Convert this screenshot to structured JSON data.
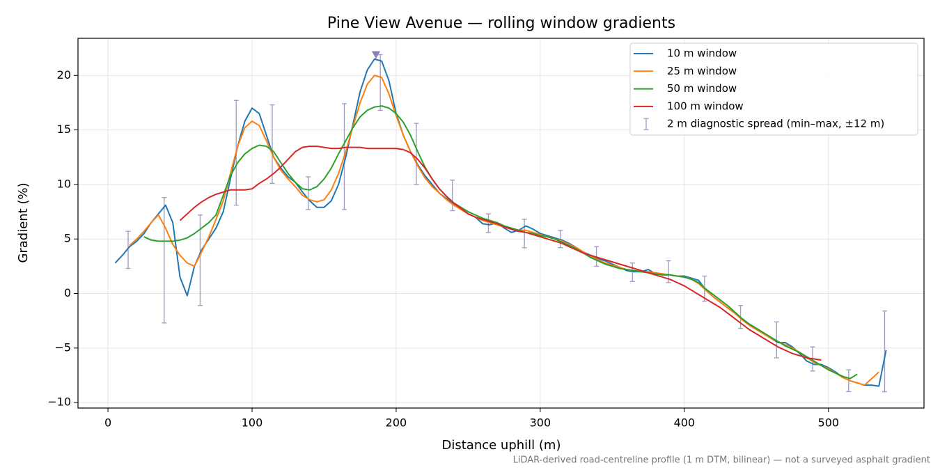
{
  "chart_data": {
    "type": "line",
    "title": "Pine View Avenue — rolling window gradients",
    "xlabel": "Distance uphill (m)",
    "ylabel": "Gradient (%)",
    "footnote": "LiDAR-derived road-centreline profile (1 m DTM, bilinear) — not a surveyed asphalt gradient",
    "xlim": [
      -20.8,
      566.3
    ],
    "ylim": [
      -10.5,
      23.4
    ],
    "xticks": [
      0,
      100,
      200,
      300,
      400,
      500
    ],
    "yticks": [
      {
        "value": -10,
        "label": "−10"
      },
      {
        "value": -5,
        "label": "−5"
      },
      0,
      5,
      10,
      15,
      20
    ],
    "grid": true,
    "legend": "upper right",
    "x": [
      5,
      10,
      15,
      20,
      25,
      30,
      35,
      40,
      45,
      50,
      55,
      60,
      65,
      70,
      75,
      80,
      85,
      90,
      95,
      100,
      105,
      110,
      115,
      120,
      125,
      130,
      135,
      140,
      145,
      150,
      155,
      160,
      165,
      170,
      175,
      180,
      185,
      190,
      195,
      200,
      205,
      210,
      215,
      220,
      225,
      230,
      235,
      240,
      245,
      250,
      255,
      260,
      265,
      270,
      275,
      280,
      285,
      290,
      295,
      300,
      305,
      310,
      315,
      320,
      325,
      330,
      335,
      340,
      345,
      350,
      355,
      360,
      365,
      370,
      375,
      380,
      385,
      390,
      395,
      400,
      405,
      410,
      415,
      420,
      425,
      430,
      435,
      440,
      445,
      450,
      455,
      460,
      465,
      470,
      475,
      480,
      485,
      490,
      495,
      500,
      505,
      510,
      515,
      520,
      525,
      530,
      535,
      540
    ],
    "series": [
      {
        "name": "10 m window",
        "color": "#1f77b4",
        "values": [
          2.8,
          3.5,
          4.3,
          4.8,
          5.5,
          6.5,
          7.3,
          8.1,
          6.5,
          1.5,
          -0.2,
          2.5,
          4.0,
          5.0,
          6.0,
          7.5,
          10.5,
          13.5,
          15.8,
          17.0,
          16.5,
          14.5,
          12.5,
          11.5,
          10.7,
          10.2,
          9.3,
          8.5,
          7.9,
          7.9,
          8.5,
          10.0,
          12.5,
          15.5,
          18.5,
          20.5,
          21.5,
          21.3,
          19.5,
          16.5,
          14.5,
          13.0,
          11.8,
          10.8,
          10.0,
          9.2,
          8.7,
          8.2,
          7.8,
          7.3,
          7.0,
          6.4,
          6.3,
          6.5,
          6.0,
          5.6,
          5.8,
          6.2,
          5.9,
          5.5,
          5.3,
          5.1,
          4.9,
          4.6,
          4.2,
          3.8,
          3.5,
          3.2,
          3.0,
          2.7,
          2.4,
          2.1,
          2.0,
          2.0,
          2.2,
          1.8,
          1.8,
          1.7,
          1.6,
          1.6,
          1.4,
          1.2,
          0.3,
          -0.3,
          -0.8,
          -1.3,
          -1.8,
          -2.3,
          -2.8,
          -3.2,
          -3.6,
          -4.1,
          -4.5,
          -4.5,
          -4.9,
          -5.5,
          -6.2,
          -6.5,
          -6.5,
          -6.8,
          -7.2,
          -7.7,
          -8.0,
          -8.2,
          -8.4,
          -8.4,
          -8.5,
          -5.2
        ]
      },
      {
        "name": "25 m window",
        "color": "#ff7f0e",
        "values": [
          null,
          null,
          4.4,
          5.0,
          5.7,
          6.5,
          7.2,
          6.0,
          4.5,
          3.5,
          2.8,
          2.5,
          3.8,
          5.2,
          6.8,
          8.5,
          11.0,
          13.5,
          15.2,
          15.8,
          15.4,
          14.0,
          12.5,
          11.3,
          10.5,
          9.8,
          9.0,
          8.6,
          8.4,
          8.6,
          9.5,
          11.0,
          13.0,
          15.3,
          17.5,
          19.2,
          20.0,
          19.8,
          18.3,
          16.3,
          14.5,
          13.0,
          11.7,
          10.6,
          9.8,
          9.2,
          8.6,
          8.1,
          7.7,
          7.3,
          7.0,
          6.7,
          6.5,
          6.3,
          6.1,
          5.9,
          5.8,
          5.8,
          5.6,
          5.4,
          5.2,
          5.0,
          4.8,
          4.5,
          4.2,
          3.8,
          3.4,
          3.1,
          2.8,
          2.6,
          2.4,
          2.2,
          2.1,
          2.0,
          2.0,
          1.9,
          1.8,
          1.7,
          1.6,
          1.5,
          1.3,
          0.9,
          0.3,
          -0.3,
          -0.8,
          -1.3,
          -1.8,
          -2.4,
          -2.9,
          -3.3,
          -3.7,
          -4.1,
          -4.4,
          -4.7,
          -5.0,
          -5.4,
          -5.9,
          -6.3,
          -6.6,
          -6.9,
          -7.3,
          -7.7,
          -8.0,
          -8.2,
          -8.4,
          -7.8,
          -7.2,
          null
        ]
      },
      {
        "name": "50 m window",
        "color": "#2ca02c",
        "values": [
          null,
          null,
          null,
          null,
          5.2,
          4.9,
          4.8,
          4.8,
          4.8,
          4.9,
          5.1,
          5.5,
          6.0,
          6.5,
          7.2,
          9.0,
          10.8,
          12.0,
          12.8,
          13.3,
          13.6,
          13.5,
          13.0,
          12.0,
          11.0,
          10.2,
          9.6,
          9.5,
          9.8,
          10.5,
          11.5,
          12.8,
          14.0,
          15.2,
          16.2,
          16.8,
          17.1,
          17.2,
          17.0,
          16.5,
          15.7,
          14.5,
          13.0,
          11.6,
          10.5,
          9.6,
          8.9,
          8.3,
          7.9,
          7.5,
          7.2,
          6.9,
          6.7,
          6.5,
          6.2,
          6.0,
          5.8,
          5.6,
          5.5,
          5.3,
          5.2,
          5.0,
          4.7,
          4.4,
          4.1,
          3.7,
          3.3,
          3.0,
          2.7,
          2.5,
          2.3,
          2.2,
          2.1,
          2.0,
          1.9,
          1.8,
          1.7,
          1.7,
          1.6,
          1.5,
          1.3,
          1.0,
          0.4,
          -0.1,
          -0.6,
          -1.1,
          -1.7,
          -2.3,
          -2.8,
          -3.2,
          -3.6,
          -4.0,
          -4.4,
          -4.8,
          -5.1,
          -5.4,
          -5.8,
          -6.2,
          -6.6,
          -7.0,
          -7.3,
          -7.6,
          -7.8,
          -7.4,
          null,
          null,
          null,
          null
        ]
      },
      {
        "name": "100 m window",
        "color": "#d62728",
        "values": [
          null,
          null,
          null,
          null,
          null,
          null,
          null,
          null,
          null,
          6.7,
          7.3,
          7.9,
          8.4,
          8.8,
          9.1,
          9.3,
          9.5,
          9.5,
          9.5,
          9.6,
          10.1,
          10.5,
          11.0,
          11.6,
          12.3,
          13.0,
          13.4,
          13.5,
          13.5,
          13.4,
          13.3,
          13.3,
          13.4,
          13.4,
          13.4,
          13.3,
          13.3,
          13.3,
          13.3,
          13.3,
          13.2,
          12.9,
          12.3,
          11.5,
          10.5,
          9.6,
          8.9,
          8.3,
          7.8,
          7.3,
          7.0,
          6.8,
          6.6,
          6.4,
          6.1,
          5.9,
          5.7,
          5.6,
          5.4,
          5.2,
          5.0,
          4.8,
          4.6,
          4.3,
          4.0,
          3.7,
          3.5,
          3.3,
          3.1,
          2.9,
          2.7,
          2.5,
          2.3,
          2.1,
          1.9,
          1.7,
          1.5,
          1.3,
          1.0,
          0.7,
          0.3,
          -0.1,
          -0.5,
          -0.9,
          -1.3,
          -1.8,
          -2.3,
          -2.8,
          -3.3,
          -3.7,
          -4.1,
          -4.5,
          -4.9,
          -5.2,
          -5.5,
          -5.7,
          -5.9,
          -6.0,
          -6.1,
          null,
          null,
          null,
          null,
          null,
          null,
          null,
          null,
          null
        ]
      }
    ],
    "error_bars": {
      "name": "2 m diagnostic spread (min–max, ±12 m)",
      "color": "#a39fc4",
      "x": [
        14,
        39,
        64,
        89,
        114,
        139,
        164,
        189,
        214,
        239,
        264,
        289,
        314,
        339,
        364,
        389,
        414,
        439,
        464,
        489,
        514,
        539
      ],
      "high": [
        5.7,
        8.8,
        7.2,
        17.7,
        17.3,
        10.7,
        17.4,
        21.9,
        15.6,
        10.4,
        7.3,
        6.8,
        5.8,
        4.3,
        2.8,
        3.0,
        1.6,
        -1.1,
        -2.6,
        -4.9,
        -7.0,
        -1.6
      ],
      "low": [
        2.3,
        -2.7,
        -1.1,
        8.1,
        10.1,
        7.7,
        7.7,
        16.8,
        10.0,
        7.6,
        5.6,
        4.2,
        4.2,
        2.5,
        1.1,
        1.0,
        -0.7,
        -3.2,
        -5.9,
        -7.1,
        -9.0,
        -9.0
      ]
    },
    "peak_marker": {
      "x": 186,
      "y": 21.9,
      "color": "#8c7fb3"
    }
  }
}
